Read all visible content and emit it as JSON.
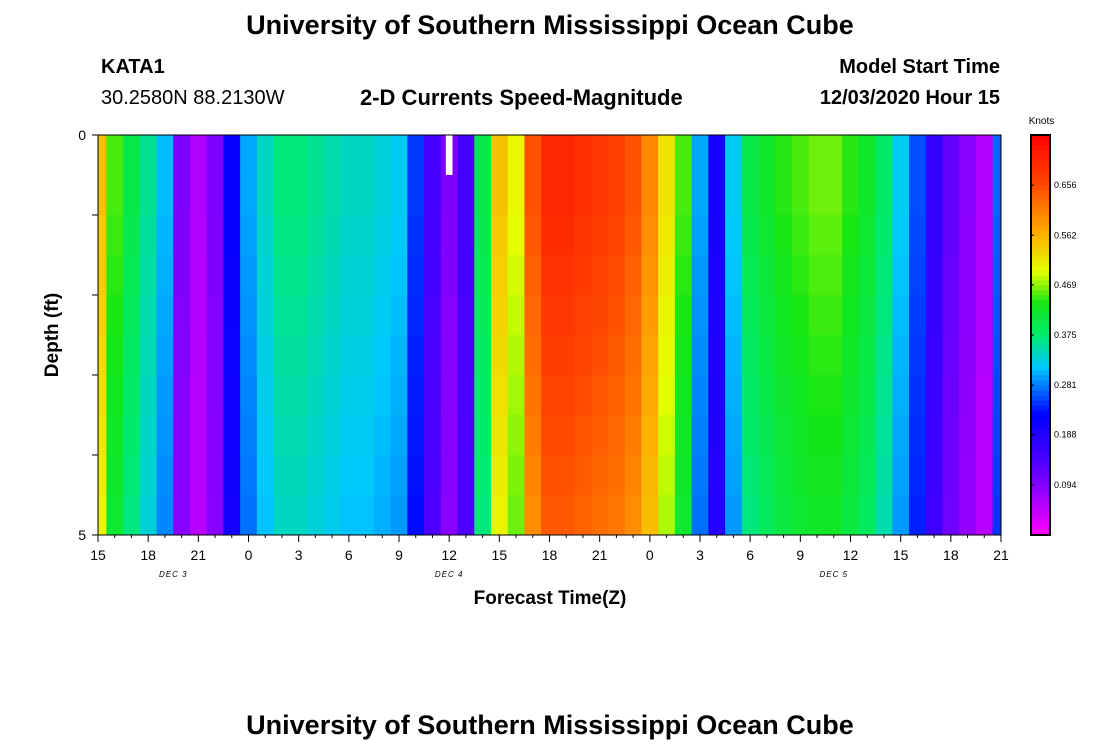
{
  "header": {
    "title": "University of Southern Mississippi Ocean Cube",
    "station_id": "KATA1",
    "coords": "30.2580N 88.2130W",
    "subtitle": "2-D Currents Speed-Magnitude",
    "model_label": "Model Start Time",
    "model_time": "12/03/2020 Hour 15"
  },
  "footer": {
    "title": "University of Southern Mississippi Ocean Cube"
  },
  "chart_data": {
    "type": "heatmap",
    "title": "2-D Currents Speed-Magnitude",
    "xlabel": "Forecast Time(Z)",
    "ylabel": "Depth (ft)",
    "x_hours": [
      15,
      16,
      17,
      18,
      19,
      20,
      21,
      22,
      23,
      24,
      25,
      26,
      27,
      28,
      29,
      30,
      31,
      32,
      33,
      34,
      35,
      36,
      37,
      38,
      39,
      40,
      41,
      42,
      43,
      44,
      45,
      46,
      47,
      48,
      49,
      50,
      51,
      52,
      53,
      54,
      55,
      56,
      57,
      58,
      59,
      60,
      61,
      62,
      63,
      64,
      65,
      66,
      67,
      68,
      69
    ],
    "xlim": [
      15,
      69
    ],
    "x_tick_labels": [
      "15",
      "18",
      "21",
      "0",
      "3",
      "6",
      "9",
      "12",
      "15",
      "18",
      "21",
      "0",
      "3",
      "6",
      "9",
      "12",
      "15",
      "18",
      "21"
    ],
    "x_tick_hours": [
      15,
      18,
      21,
      24,
      27,
      30,
      33,
      36,
      39,
      42,
      45,
      48,
      51,
      54,
      57,
      60,
      63,
      66,
      69
    ],
    "day_labels": [
      {
        "label": "DEC 3",
        "hour": 19.5
      },
      {
        "label": "DEC 4",
        "hour": 36
      },
      {
        "label": "DEC 5",
        "hour": 59
      }
    ],
    "y_tick_labels": [
      "0",
      "5"
    ],
    "ylim": [
      0,
      5
    ],
    "depth_levels": [
      0,
      0.5,
      1,
      1.5,
      2,
      2.5,
      3,
      3.5,
      4,
      4.5
    ],
    "colorbar": {
      "unit": "Knots",
      "range": [
        0,
        0.75
      ],
      "ticks": [
        "0.656",
        "0.562",
        "0.469",
        "0.375",
        "0.281",
        "0.188",
        "0.094"
      ],
      "tick_values": [
        0.656,
        0.562,
        0.469,
        0.375,
        0.281,
        0.188,
        0.094
      ]
    },
    "speed_profile_surface": [
      0.55,
      0.45,
      0.4,
      0.36,
      0.31,
      0.1,
      0.06,
      0.1,
      0.22,
      0.3,
      0.34,
      0.37,
      0.37,
      0.36,
      0.35,
      0.34,
      0.34,
      0.33,
      0.32,
      0.25,
      0.15,
      0.1,
      0.15,
      0.4,
      0.55,
      0.5,
      0.65,
      0.7,
      0.7,
      0.69,
      0.68,
      0.67,
      0.65,
      0.6,
      0.52,
      0.45,
      0.3,
      0.2,
      0.32,
      0.4,
      0.42,
      0.44,
      0.45,
      0.46,
      0.46,
      0.44,
      0.42,
      0.38,
      0.32,
      0.26,
      0.17,
      0.12,
      0.09,
      0.06,
      0.27
    ],
    "depth_factor": [
      1.0,
      1.0,
      0.99,
      0.98,
      0.97,
      0.96,
      0.95,
      0.94,
      0.93,
      0.92
    ],
    "missing_cells": [
      {
        "hour": 36,
        "depth_from": 0,
        "depth_to": 0.5
      }
    ]
  }
}
